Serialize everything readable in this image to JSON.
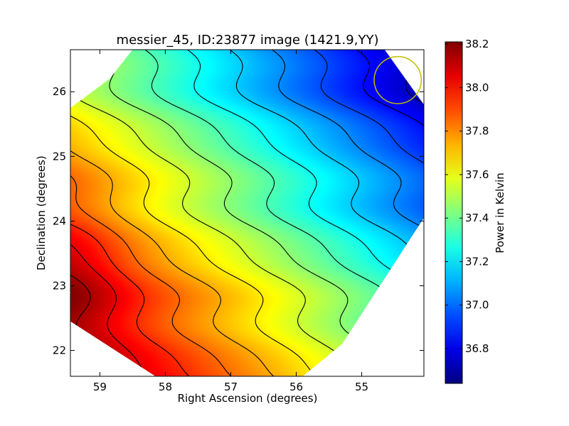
{
  "chart_data": {
    "type": "heatmap",
    "title": "messier_45, ID:23877 image (1421.9,YY)",
    "xlabel": "Right Ascension (degrees)",
    "ylabel": "Declination (degrees)",
    "xlim": [
      59.45,
      54.05
    ],
    "ylim": [
      21.6,
      26.65
    ],
    "x_ticks": [
      59,
      58,
      57,
      56,
      55
    ],
    "x_tick_labels": [
      "59",
      "58",
      "57",
      "56",
      "55"
    ],
    "y_ticks": [
      22,
      23,
      24,
      25,
      26
    ],
    "y_tick_labels": [
      "22",
      "23",
      "24",
      "25",
      "26"
    ],
    "colorscale": "jet",
    "colorbar": {
      "label": "Power in Kelvin",
      "range": [
        36.64,
        38.21
      ],
      "ticks": [
        36.8,
        37.0,
        37.2,
        37.4,
        37.6,
        37.8,
        38.0,
        38.2
      ],
      "tick_labels": [
        "36.8",
        "37.0",
        "37.2",
        "37.4",
        "37.6",
        "37.8",
        "38.0",
        "38.2"
      ]
    },
    "field_mask": {
      "shape": "clipped-octagon",
      "vertices_ra_dec": [
        [
          58.5,
          26.65
        ],
        [
          54.65,
          26.65
        ],
        [
          54.05,
          25.8
        ],
        [
          54.05,
          24.05
        ],
        [
          55.3,
          22.1
        ],
        [
          55.9,
          21.6
        ],
        [
          58.15,
          21.6
        ],
        [
          59.45,
          22.45
        ],
        [
          59.45,
          25.75
        ],
        [
          58.85,
          26.2
        ]
      ]
    },
    "contour_levels": [
      36.75,
      36.85,
      36.95,
      37.05,
      37.15,
      37.25,
      37.35,
      37.45,
      37.55,
      37.65,
      37.75,
      37.85,
      37.95,
      38.05,
      38.15
    ],
    "grid": false,
    "annotations": [
      {
        "type": "beam-circle",
        "ra": 54.45,
        "dec": 26.18,
        "radius_deg": 0.36,
        "color": "#bfbf00"
      }
    ]
  },
  "colors": {
    "background": "#ffffff",
    "contour": "#000000",
    "beam_circle": "#bfbf00"
  }
}
